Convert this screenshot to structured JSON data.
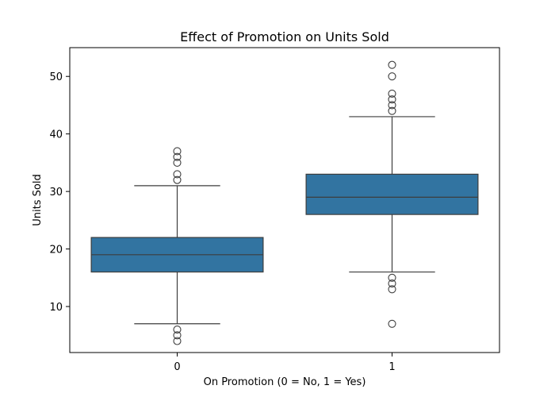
{
  "chart_data": {
    "type": "box",
    "title": "Effect of Promotion on Units Sold",
    "xlabel": "On Promotion (0 = No, 1 = Yes)",
    "ylabel": "Units Sold",
    "categories": [
      "0",
      "1"
    ],
    "ylim": [
      2,
      55
    ],
    "yticks": [
      10,
      20,
      30,
      40,
      50
    ],
    "grid": false,
    "legend": "none",
    "box_color": "#3274a1",
    "line_color": "#3d3d3d",
    "series": [
      {
        "category": "0",
        "whisker_low": 7,
        "q1": 16,
        "median": 19,
        "q3": 22,
        "whisker_high": 31,
        "outliers": [
          4,
          5,
          6,
          32,
          33,
          35,
          36,
          37
        ]
      },
      {
        "category": "1",
        "whisker_low": 16,
        "q1": 26,
        "median": 29,
        "q3": 33,
        "whisker_high": 43,
        "outliers": [
          7,
          13,
          14,
          15,
          44,
          45,
          46,
          47,
          50,
          52
        ]
      }
    ]
  }
}
